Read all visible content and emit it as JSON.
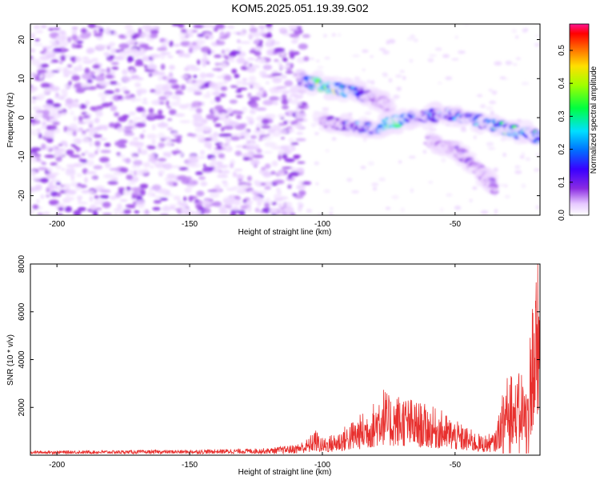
{
  "title": "KOM5.2025.051.19.39.G02",
  "chart_data": [
    {
      "type": "heatmap",
      "title": "KOM5.2025.051.19.39.G02",
      "xlabel": "Height of straight line (km)",
      "ylabel": "Frequency (Hz)",
      "xlim": [
        -210,
        -18
      ],
      "ylim": [
        -25,
        24
      ],
      "xticks": [
        -200,
        -150,
        -100,
        -50
      ],
      "yticks": [
        -20,
        -10,
        0,
        10,
        20
      ],
      "colorbar": {
        "label": "Normalized spectral amplitude",
        "range": [
          0,
          0.58
        ],
        "ticks": [
          0.0,
          0.1,
          0.2,
          0.3,
          0.4,
          0.5
        ]
      },
      "features": [
        {
          "segment": "noise",
          "x_range": [
            -210,
            -106
          ],
          "frequency_range": [
            -25,
            24
          ],
          "amplitude": 0.05
        },
        {
          "segment": "band-upper",
          "x": [
            -108,
            -100,
            -90,
            -80,
            -75
          ],
          "frequency": [
            10,
            8,
            7,
            5,
            3
          ],
          "amplitude": [
            0.15,
            0.5,
            0.3,
            0.12,
            0.08
          ]
        },
        {
          "segment": "band-main",
          "x": [
            -100,
            -90,
            -80,
            -73,
            -65,
            -55,
            -45,
            -35,
            -25,
            -18
          ],
          "frequency": [
            -1,
            -2,
            -3,
            -1,
            0,
            1,
            0,
            -2,
            -4,
            -5
          ],
          "amplitude": [
            0.1,
            0.18,
            0.25,
            0.5,
            0.22,
            0.2,
            0.25,
            0.3,
            0.35,
            0.3
          ]
        },
        {
          "segment": "band-lower",
          "x": [
            -60,
            -50,
            -40,
            -35
          ],
          "frequency": [
            -6,
            -8,
            -14,
            -18
          ],
          "amplitude": [
            0.08,
            0.1,
            0.1,
            0.1
          ]
        }
      ]
    },
    {
      "type": "line",
      "xlabel": "Height of straight line (km)",
      "ylabel": "SNR (10 * v/v)",
      "xlim": [
        -210,
        -18
      ],
      "ylim": [
        0,
        8000
      ],
      "xticks": [
        -200,
        -150,
        -100,
        -50
      ],
      "yticks": [
        2000,
        4000,
        6000,
        8000
      ],
      "color": "#e8302e",
      "envelope": {
        "x": [
          -210,
          -150,
          -120,
          -110,
          -105,
          -103,
          -100,
          -95,
          -90,
          -85,
          -80,
          -78,
          -75,
          -70,
          -65,
          -60,
          -55,
          -50,
          -45,
          -40,
          -35,
          -32,
          -30,
          -28,
          -25,
          -23,
          -21,
          -19,
          -18
        ],
        "y": [
          180,
          220,
          300,
          450,
          700,
          1100,
          700,
          900,
          1300,
          1700,
          2200,
          3000,
          2400,
          2500,
          2200,
          2000,
          1800,
          1400,
          1100,
          800,
          900,
          2500,
          4800,
          2800,
          3500,
          2600,
          6500,
          8000,
          7000
        ]
      }
    }
  ]
}
